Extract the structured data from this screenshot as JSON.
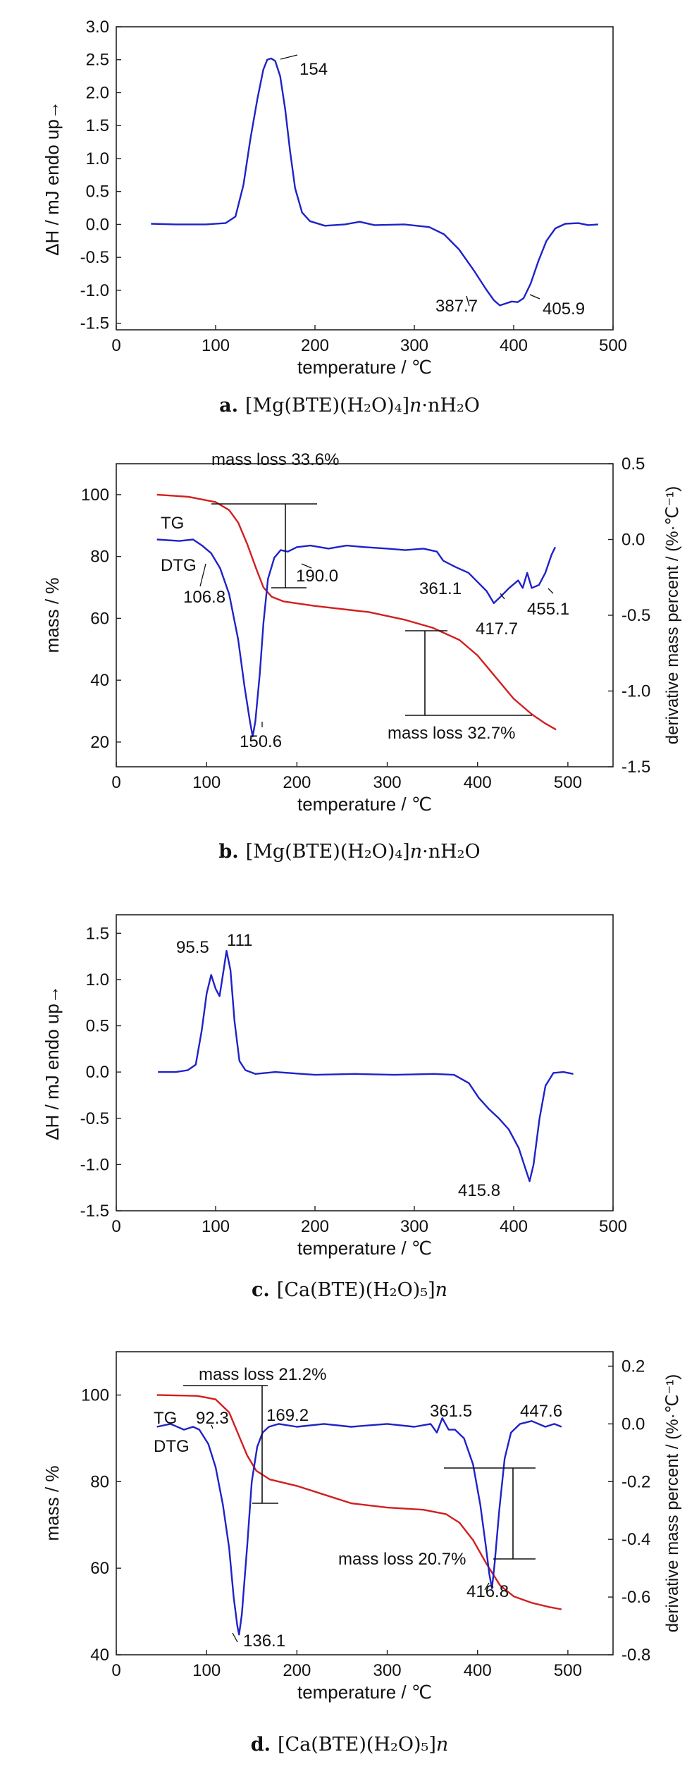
{
  "chart_data": [
    {
      "id": "a",
      "type": "line",
      "xlabel": "temperature / ℃",
      "ylabel": "ΔH / mJ  endo up→",
      "xlim": [
        0,
        500
      ],
      "ylim": [
        -1.6,
        3.0
      ],
      "xticks": [
        "0",
        "100",
        "200",
        "300",
        "400",
        "500"
      ],
      "yticks": [
        "3.0",
        "2.5",
        "2.0",
        "1.5",
        "1.0",
        "0.5",
        "0.0",
        "-0.5",
        "-1.0",
        "-1.5"
      ],
      "series": [
        {
          "color": "#1f22c8",
          "points": [
            [
              35,
              0.01
            ],
            [
              60,
              0.0
            ],
            [
              90,
              0.0
            ],
            [
              110,
              0.02
            ],
            [
              120,
              0.12
            ],
            [
              128,
              0.6
            ],
            [
              135,
              1.3
            ],
            [
              142,
              1.9
            ],
            [
              148,
              2.35
            ],
            [
              152,
              2.5
            ],
            [
              156,
              2.52
            ],
            [
              160,
              2.48
            ],
            [
              165,
              2.25
            ],
            [
              170,
              1.75
            ],
            [
              175,
              1.1
            ],
            [
              180,
              0.55
            ],
            [
              187,
              0.18
            ],
            [
              195,
              0.05
            ],
            [
              210,
              -0.02
            ],
            [
              230,
              0.0
            ],
            [
              245,
              0.04
            ],
            [
              260,
              -0.01
            ],
            [
              290,
              0.0
            ],
            [
              315,
              -0.04
            ],
            [
              330,
              -0.15
            ],
            [
              345,
              -0.38
            ],
            [
              360,
              -0.7
            ],
            [
              372,
              -0.98
            ],
            [
              380,
              -1.15
            ],
            [
              386,
              -1.23
            ],
            [
              392,
              -1.2
            ],
            [
              398,
              -1.17
            ],
            [
              404,
              -1.18
            ],
            [
              410,
              -1.12
            ],
            [
              417,
              -0.9
            ],
            [
              425,
              -0.55
            ],
            [
              433,
              -0.25
            ],
            [
              442,
              -0.06
            ],
            [
              452,
              0.01
            ],
            [
              465,
              0.02
            ],
            [
              475,
              -0.01
            ],
            [
              485,
              0.0
            ]
          ]
        }
      ],
      "annotations": [
        "154",
        "387.7",
        "405.9"
      ],
      "caption": {
        "label": "a.",
        "formula": "Mg(BTE)(H₂O)₄",
        "suffix": "nH₂O"
      }
    },
    {
      "id": "b",
      "type": "line",
      "xlabel": "temperature / ℃",
      "ylabel": "mass / %",
      "y2label": "derivative mass percent / (%·℃⁻¹)",
      "xlim": [
        0,
        550
      ],
      "ylim": [
        12,
        110
      ],
      "y2lim": [
        -1.5,
        0.5
      ],
      "xticks": [
        "0",
        "100",
        "200",
        "300",
        "400",
        "500"
      ],
      "yticks": [
        "100",
        "80",
        "60",
        "40",
        "20"
      ],
      "y2ticks": [
        "0.5",
        "0.0",
        "-0.5",
        "-1.0",
        "-1.5"
      ],
      "series": [
        {
          "name": "TG",
          "color": "#d21f1f",
          "axis": "left",
          "points": [
            [
              45,
              100
            ],
            [
              80,
              99.3
            ],
            [
              110,
              97.6
            ],
            [
              125,
              95
            ],
            [
              135,
              91
            ],
            [
              145,
              84
            ],
            [
              155,
              76
            ],
            [
              163,
              70
            ],
            [
              172,
              67
            ],
            [
              185,
              65.5
            ],
            [
              220,
              64
            ],
            [
              280,
              62
            ],
            [
              320,
              59.5
            ],
            [
              350,
              57
            ],
            [
              380,
              53
            ],
            [
              400,
              48
            ],
            [
              420,
              41
            ],
            [
              440,
              34
            ],
            [
              460,
              29
            ],
            [
              475,
              26
            ],
            [
              487,
              24
            ]
          ]
        },
        {
          "name": "DTG",
          "color": "#1f22c8",
          "axis": "right",
          "points": [
            [
              45,
              0.0
            ],
            [
              70,
              -0.01
            ],
            [
              85,
              0.0
            ],
            [
              95,
              -0.04
            ],
            [
              105,
              -0.09
            ],
            [
              115,
              -0.19
            ],
            [
              125,
              -0.36
            ],
            [
              135,
              -0.66
            ],
            [
              142,
              -0.97
            ],
            [
              148,
              -1.2
            ],
            [
              151,
              -1.3
            ],
            [
              154,
              -1.2
            ],
            [
              159,
              -0.88
            ],
            [
              163,
              -0.55
            ],
            [
              168,
              -0.26
            ],
            [
              175,
              -0.12
            ],
            [
              182,
              -0.07
            ],
            [
              190,
              -0.08
            ],
            [
              200,
              -0.05
            ],
            [
              215,
              -0.04
            ],
            [
              235,
              -0.06
            ],
            [
              255,
              -0.04
            ],
            [
              275,
              -0.05
            ],
            [
              300,
              -0.06
            ],
            [
              320,
              -0.07
            ],
            [
              340,
              -0.06
            ],
            [
              355,
              -0.08
            ],
            [
              362,
              -0.14
            ],
            [
              375,
              -0.18
            ],
            [
              390,
              -0.22
            ],
            [
              400,
              -0.28
            ],
            [
              410,
              -0.34
            ],
            [
              418,
              -0.42
            ],
            [
              425,
              -0.38
            ],
            [
              435,
              -0.32
            ],
            [
              445,
              -0.27
            ],
            [
              450,
              -0.32
            ],
            [
              455,
              -0.22
            ],
            [
              460,
              -0.32
            ],
            [
              468,
              -0.3
            ],
            [
              475,
              -0.22
            ],
            [
              482,
              -0.1
            ],
            [
              486,
              -0.05
            ]
          ]
        }
      ],
      "annotations": [
        "mass loss 33.6%",
        "mass loss 32.7%",
        "TG",
        "DTG",
        "106.8",
        "150.6",
        "190.0",
        "361.1",
        "417.7",
        "455.1"
      ],
      "caption": {
        "label": "b.",
        "formula": "Mg(BTE)(H₂O)₄",
        "suffix": "nH₂O"
      }
    },
    {
      "id": "c",
      "type": "line",
      "xlabel": "temperature / ℃",
      "ylabel": "ΔH / mJ  endo up→",
      "xlim": [
        0,
        500
      ],
      "ylim": [
        -1.5,
        1.7
      ],
      "xticks": [
        "0",
        "100",
        "200",
        "300",
        "400",
        "500"
      ],
      "yticks": [
        "1.5",
        "1.0",
        "0.5",
        "0.0",
        "-0.5",
        "-1.0",
        "-1.5"
      ],
      "series": [
        {
          "color": "#1f22c8",
          "points": [
            [
              42,
              0.0
            ],
            [
              60,
              0.0
            ],
            [
              72,
              0.02
            ],
            [
              80,
              0.08
            ],
            [
              86,
              0.45
            ],
            [
              91,
              0.85
            ],
            [
              95.5,
              1.05
            ],
            [
              100,
              0.9
            ],
            [
              104,
              0.82
            ],
            [
              108,
              1.1
            ],
            [
              111,
              1.31
            ],
            [
              115,
              1.1
            ],
            [
              119,
              0.55
            ],
            [
              124,
              0.12
            ],
            [
              130,
              0.02
            ],
            [
              140,
              -0.02
            ],
            [
              160,
              0.0
            ],
            [
              200,
              -0.03
            ],
            [
              240,
              -0.02
            ],
            [
              280,
              -0.03
            ],
            [
              320,
              -0.02
            ],
            [
              340,
              -0.03
            ],
            [
              355,
              -0.12
            ],
            [
              365,
              -0.28
            ],
            [
              375,
              -0.4
            ],
            [
              385,
              -0.5
            ],
            [
              395,
              -0.62
            ],
            [
              405,
              -0.82
            ],
            [
              412,
              -1.05
            ],
            [
              416,
              -1.18
            ],
            [
              420,
              -1.0
            ],
            [
              426,
              -0.5
            ],
            [
              432,
              -0.15
            ],
            [
              440,
              -0.01
            ],
            [
              450,
              0.0
            ],
            [
              460,
              -0.02
            ]
          ]
        }
      ],
      "annotations": [
        "95.5",
        "111",
        "415.8"
      ],
      "caption": {
        "label": "c.",
        "formula": "Ca(BTE)(H₂O)₅",
        "suffix": ""
      }
    },
    {
      "id": "d",
      "type": "line",
      "xlabel": "temperature / ℃",
      "ylabel": "mass / %",
      "y2label": "derivative mass percent / (%·℃⁻¹)",
      "xlim": [
        0,
        550
      ],
      "ylim": [
        40,
        110
      ],
      "y2lim": [
        -0.8,
        0.25
      ],
      "xticks": [
        "0",
        "100",
        "200",
        "300",
        "400",
        "500"
      ],
      "yticks": [
        "100",
        "80",
        "60",
        "40"
      ],
      "y2ticks": [
        "0.2",
        "0.0",
        "-0.2",
        "-0.4",
        "-0.6",
        "-0.8"
      ],
      "series": [
        {
          "name": "TG",
          "color": "#d21f1f",
          "axis": "left",
          "points": [
            [
              45,
              100
            ],
            [
              90,
              99.8
            ],
            [
              110,
              99
            ],
            [
              125,
              96
            ],
            [
              135,
              91
            ],
            [
              145,
              86
            ],
            [
              155,
              82.5
            ],
            [
              170,
              80.5
            ],
            [
              200,
              79
            ],
            [
              230,
              77
            ],
            [
              260,
              75
            ],
            [
              300,
              74
            ],
            [
              340,
              73.5
            ],
            [
              365,
              72.5
            ],
            [
              380,
              70.5
            ],
            [
              395,
              66.5
            ],
            [
              410,
              61
            ],
            [
              425,
              56
            ],
            [
              440,
              53.5
            ],
            [
              460,
              52
            ],
            [
              480,
              51
            ],
            [
              493,
              50.5
            ]
          ]
        },
        {
          "name": "DTG",
          "color": "#1f22c8",
          "axis": "right",
          "points": [
            [
              45,
              -0.01
            ],
            [
              60,
              0.0
            ],
            [
              75,
              -0.02
            ],
            [
              85,
              -0.01
            ],
            [
              92,
              -0.02
            ],
            [
              102,
              -0.07
            ],
            [
              110,
              -0.15
            ],
            [
              118,
              -0.28
            ],
            [
              125,
              -0.43
            ],
            [
              130,
              -0.6
            ],
            [
              134,
              -0.7
            ],
            [
              136,
              -0.73
            ],
            [
              139,
              -0.66
            ],
            [
              145,
              -0.42
            ],
            [
              150,
              -0.2
            ],
            [
              156,
              -0.08
            ],
            [
              162,
              -0.03
            ],
            [
              169,
              -0.01
            ],
            [
              180,
              0.0
            ],
            [
              200,
              -0.01
            ],
            [
              230,
              0.0
            ],
            [
              260,
              -0.01
            ],
            [
              300,
              0.0
            ],
            [
              330,
              -0.01
            ],
            [
              348,
              0.0
            ],
            [
              355,
              -0.03
            ],
            [
              361,
              0.02
            ],
            [
              368,
              -0.02
            ],
            [
              375,
              -0.02
            ],
            [
              385,
              -0.05
            ],
            [
              395,
              -0.14
            ],
            [
              403,
              -0.28
            ],
            [
              409,
              -0.42
            ],
            [
              413,
              -0.52
            ],
            [
              416,
              -0.57
            ],
            [
              419,
              -0.48
            ],
            [
              424,
              -0.3
            ],
            [
              430,
              -0.12
            ],
            [
              437,
              -0.03
            ],
            [
              447,
              0.0
            ],
            [
              460,
              0.01
            ],
            [
              475,
              -0.01
            ],
            [
              485,
              0.0
            ],
            [
              493,
              -0.01
            ]
          ]
        }
      ],
      "annotations": [
        "mass loss 21.2%",
        "mass loss 20.7%",
        "TG",
        "DTG",
        "92.3",
        "136.1",
        "169.2",
        "361.5",
        "416.8",
        "447.6"
      ],
      "caption": {
        "label": "d.",
        "formula": "Ca(BTE)(H₂O)₅",
        "suffix": ""
      }
    }
  ]
}
